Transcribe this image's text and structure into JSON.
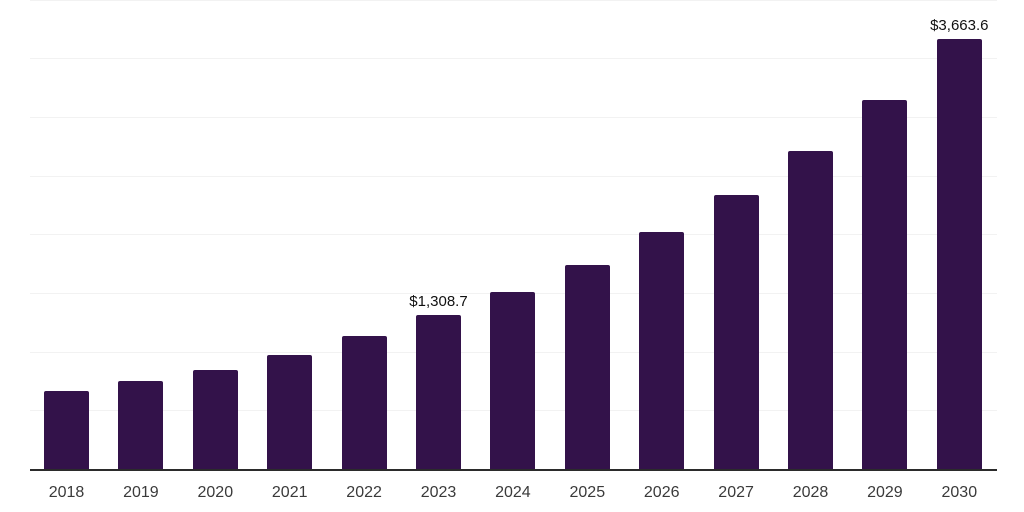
{
  "chart_data": {
    "type": "bar",
    "title": "",
    "xlabel": "",
    "ylabel": "",
    "categories": [
      "2018",
      "2019",
      "2020",
      "2021",
      "2022",
      "2023",
      "2024",
      "2025",
      "2026",
      "2027",
      "2028",
      "2029",
      "2030"
    ],
    "values": [
      665,
      750,
      845,
      975,
      1135,
      1308.7,
      1510,
      1740,
      2020,
      2335,
      2705,
      3140,
      3663.6
    ],
    "point_labels": [
      "",
      "",
      "",
      "",
      "",
      "$1,308.7",
      "",
      "",
      "",
      "",
      "",
      "",
      "$3,663.6"
    ],
    "ylim": [
      0,
      4000
    ],
    "gridline_step": 500,
    "grid": "horizontal-only",
    "legend": "none",
    "y_axis_tick_labels": "none",
    "colors": {
      "bar": "#33124A",
      "gridline": "#F2F2F2",
      "axis_line": "#2B2B2B",
      "tick_label": "#3A3A3A",
      "data_label": "#111111",
      "background": "#FFFFFF"
    }
  }
}
